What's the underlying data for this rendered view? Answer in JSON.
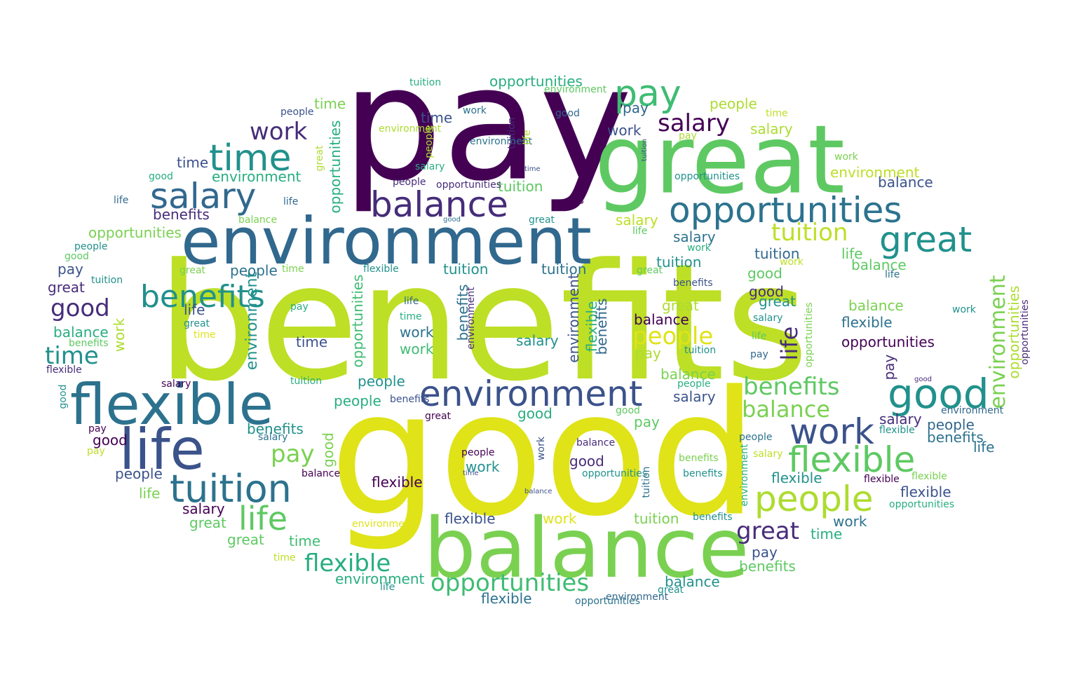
{
  "palette": {
    "p0": "#440154",
    "p1": "#472c7a",
    "p2": "#3b528b",
    "p3": "#2c728e",
    "p4": "#21918c",
    "p5": "#28ae80",
    "p6": "#5ec962",
    "p7": "#addc30",
    "p8": "#bddf26",
    "p9": "#dfe318"
  },
  "words": [
    {
      "text": "benefits"
    },
    {
      "text": "good"
    },
    {
      "text": "pay"
    },
    {
      "text": "great"
    },
    {
      "text": "balance"
    },
    {
      "text": "environment"
    },
    {
      "text": "flexible"
    },
    {
      "text": "life"
    },
    {
      "text": "tuition"
    },
    {
      "text": "opportunities"
    },
    {
      "text": "environment"
    },
    {
      "text": "time"
    },
    {
      "text": "salary"
    },
    {
      "text": "balance"
    },
    {
      "text": "pay"
    },
    {
      "text": "great"
    },
    {
      "text": "good"
    },
    {
      "text": "work"
    },
    {
      "text": "flexible"
    },
    {
      "text": "people"
    },
    {
      "text": "opportunities"
    },
    {
      "text": "life"
    },
    {
      "text": "flexible"
    },
    {
      "text": "salary"
    },
    {
      "text": "work"
    },
    {
      "text": "benefits"
    },
    {
      "text": "balance"
    },
    {
      "text": "tuition"
    },
    {
      "text": "people"
    },
    {
      "text": "great"
    },
    {
      "text": "good"
    },
    {
      "text": "time"
    },
    {
      "text": "pay"
    },
    {
      "text": "benefits"
    },
    {
      "text": "environment"
    },
    {
      "text": "environment"
    },
    {
      "text": "opportunities"
    },
    {
      "text": "opportunities"
    },
    {
      "text": "life"
    },
    {
      "text": "tuition"
    },
    {
      "text": "people"
    },
    {
      "text": "salary"
    },
    {
      "text": "environment"
    },
    {
      "text": "opportunities"
    },
    {
      "text": "time"
    },
    {
      "text": "pay"
    },
    {
      "text": "benefits"
    },
    {
      "text": "flexible"
    },
    {
      "text": "benefits"
    },
    {
      "text": "opportunities"
    },
    {
      "text": "tuition"
    },
    {
      "text": "balance"
    },
    {
      "text": "great"
    },
    {
      "text": "environment"
    },
    {
      "text": "people"
    },
    {
      "text": "environment"
    },
    {
      "text": "salary"
    },
    {
      "text": "salary"
    },
    {
      "text": "people"
    },
    {
      "text": "people"
    },
    {
      "text": "balance"
    },
    {
      "text": "good"
    },
    {
      "text": "salary"
    },
    {
      "text": "flexible"
    },
    {
      "text": "balance"
    },
    {
      "text": "time"
    },
    {
      "text": "good"
    },
    {
      "text": "balance"
    },
    {
      "text": "tuition"
    },
    {
      "text": "tuition"
    },
    {
      "text": "time"
    },
    {
      "text": "pay"
    },
    {
      "text": "work"
    },
    {
      "text": "work"
    },
    {
      "text": "life"
    },
    {
      "text": "great"
    },
    {
      "text": "pay"
    },
    {
      "text": "balance"
    },
    {
      "text": "salary"
    },
    {
      "text": "work"
    },
    {
      "text": "people"
    },
    {
      "text": "tuition"
    },
    {
      "text": "great"
    },
    {
      "text": "people"
    },
    {
      "text": "benefits"
    },
    {
      "text": "flexible"
    },
    {
      "text": "life"
    },
    {
      "text": "great"
    },
    {
      "text": "benefits"
    },
    {
      "text": "time"
    },
    {
      "text": "good"
    },
    {
      "text": "pay"
    },
    {
      "text": "life"
    },
    {
      "text": "good"
    },
    {
      "text": "tuition"
    },
    {
      "text": "great"
    },
    {
      "text": "salary"
    },
    {
      "text": "pay"
    },
    {
      "text": "salary"
    },
    {
      "text": "balance"
    },
    {
      "text": "opportunities"
    },
    {
      "text": "flexible"
    },
    {
      "text": "time"
    },
    {
      "text": "work"
    },
    {
      "text": "time"
    },
    {
      "text": "flexible"
    },
    {
      "text": "benefits"
    },
    {
      "text": "work"
    },
    {
      "text": "balance"
    },
    {
      "text": "flexible"
    },
    {
      "text": "work"
    },
    {
      "text": "good"
    },
    {
      "text": "people"
    },
    {
      "text": "tuition"
    },
    {
      "text": "environment"
    },
    {
      "text": "work"
    },
    {
      "text": "environment"
    },
    {
      "text": "environment"
    },
    {
      "text": "good"
    },
    {
      "text": "salary"
    },
    {
      "text": "people"
    },
    {
      "text": "opportunities"
    },
    {
      "text": "time"
    },
    {
      "text": "pay"
    },
    {
      "text": "work"
    },
    {
      "text": "opportunities"
    },
    {
      "text": "good"
    },
    {
      "text": "life"
    },
    {
      "text": "life"
    },
    {
      "text": "balance"
    },
    {
      "text": "great"
    },
    {
      "text": "people"
    },
    {
      "text": "good"
    },
    {
      "text": "great"
    },
    {
      "text": "time"
    },
    {
      "text": "flexible"
    },
    {
      "text": "tuition"
    },
    {
      "text": "pay"
    },
    {
      "text": "great"
    },
    {
      "text": "time"
    },
    {
      "text": "life"
    },
    {
      "text": "time"
    },
    {
      "text": "benefits"
    },
    {
      "text": "flexible"
    },
    {
      "text": "salary"
    },
    {
      "text": "tuition"
    },
    {
      "text": "benefits"
    },
    {
      "text": "great"
    },
    {
      "text": "pay"
    },
    {
      "text": "salary"
    },
    {
      "text": "pay"
    },
    {
      "text": "balance"
    },
    {
      "text": "people"
    },
    {
      "text": "balance"
    },
    {
      "text": "opportunities"
    },
    {
      "text": "environment"
    },
    {
      "text": "time"
    },
    {
      "text": "life"
    },
    {
      "text": "opportunities"
    },
    {
      "text": "environment"
    },
    {
      "text": "great"
    },
    {
      "text": "benefits"
    },
    {
      "text": "benefits"
    },
    {
      "text": "benefits"
    },
    {
      "text": "good"
    },
    {
      "text": "tuition"
    },
    {
      "text": "people"
    },
    {
      "text": "life"
    },
    {
      "text": "pay"
    },
    {
      "text": "salary"
    },
    {
      "text": "people"
    },
    {
      "text": "salary"
    },
    {
      "text": "flexible"
    },
    {
      "text": "flexible"
    },
    {
      "text": "opportunities"
    },
    {
      "text": "flexible"
    },
    {
      "text": "environment"
    },
    {
      "text": "work"
    },
    {
      "text": "life"
    },
    {
      "text": "work"
    },
    {
      "text": "great"
    },
    {
      "text": "work"
    },
    {
      "text": "benefits"
    },
    {
      "text": "life"
    },
    {
      "text": "good"
    },
    {
      "text": "time"
    },
    {
      "text": "balance"
    },
    {
      "text": "time"
    },
    {
      "text": "good"
    },
    {
      "text": "tuition"
    },
    {
      "text": "great"
    },
    {
      "text": "people"
    },
    {
      "text": "life"
    }
  ]
}
